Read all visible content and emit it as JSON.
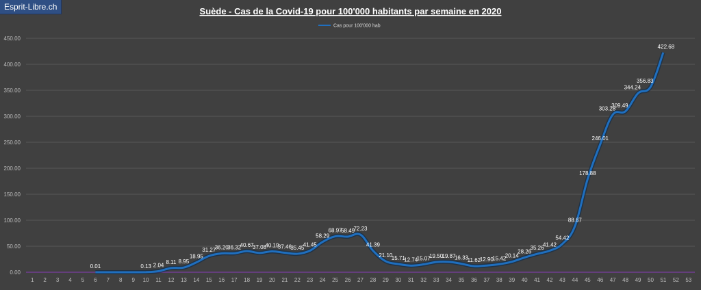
{
  "badge": "Esprit-Libre.ch",
  "chart_data": {
    "type": "line",
    "title": "Suède - Cas de la Covid-19 pour 100'000  habitants par semaine en 2020",
    "xlabel": "",
    "ylabel": "",
    "ylim": [
      0,
      450
    ],
    "yticks": [
      "0.00",
      "50.00",
      "100.00",
      "150.00",
      "200.00",
      "250.00",
      "300.00",
      "350.00",
      "400.00",
      "450.00"
    ],
    "categories": [
      "1",
      "2",
      "3",
      "4",
      "5",
      "6",
      "7",
      "8",
      "9",
      "10",
      "11",
      "12",
      "13",
      "14",
      "15",
      "16",
      "17",
      "18",
      "19",
      "20",
      "21",
      "22",
      "23",
      "24",
      "25",
      "26",
      "27",
      "28",
      "29",
      "30",
      "31",
      "32",
      "33",
      "34",
      "35",
      "36",
      "37",
      "38",
      "39",
      "40",
      "41",
      "42",
      "43",
      "44",
      "45",
      "46",
      "47",
      "48",
      "49",
      "50",
      "51",
      "52",
      "53"
    ],
    "legend": "top-center",
    "grid": true,
    "series": [
      {
        "name": "Cas pour 100'000 hab",
        "color": "#1f6fbf",
        "values": [
          null,
          null,
          null,
          null,
          null,
          0.01,
          0,
          0,
          0,
          0.13,
          2.04,
          8.11,
          8.95,
          18.95,
          31.27,
          36.2,
          36.32,
          40.67,
          37.08,
          40.19,
          37.46,
          35.45,
          41.45,
          58.29,
          68.97,
          68.49,
          72.23,
          41.39,
          21.1,
          15.71,
          12.74,
          15.07,
          19.5,
          19.87,
          16.33,
          11.62,
          12.9,
          15.42,
          20.14,
          28.26,
          35.26,
          41.42,
          54.42,
          88.67,
          178.88,
          246.01,
          303.28,
          309.49,
          344.24,
          356.83,
          422.68,
          null,
          null
        ],
        "labels": [
          "",
          "",
          "",
          "",
          "",
          "0.01",
          "",
          "",
          "",
          "0.13",
          "2.04",
          "8.11",
          "8.95",
          "18.95",
          "31.27",
          "36.20",
          "36.32",
          "40.67",
          "37.08",
          "40.19",
          "37.46",
          "35.45",
          "41.45",
          "58.29",
          "68.97",
          "68.49",
          "72.23",
          "41.39",
          "21.10",
          "15.71",
          "12.74",
          "15.07",
          "19.50",
          "19.87",
          "16.33",
          "11.62",
          "12.90",
          "15.42",
          "20.14",
          "28.26",
          "35.26",
          "41.42",
          "54.42",
          "88.67",
          "178.88",
          "246.01",
          "303.28",
          "309.49",
          "344.24",
          "356.83",
          "422.68",
          "",
          ""
        ]
      }
    ]
  }
}
